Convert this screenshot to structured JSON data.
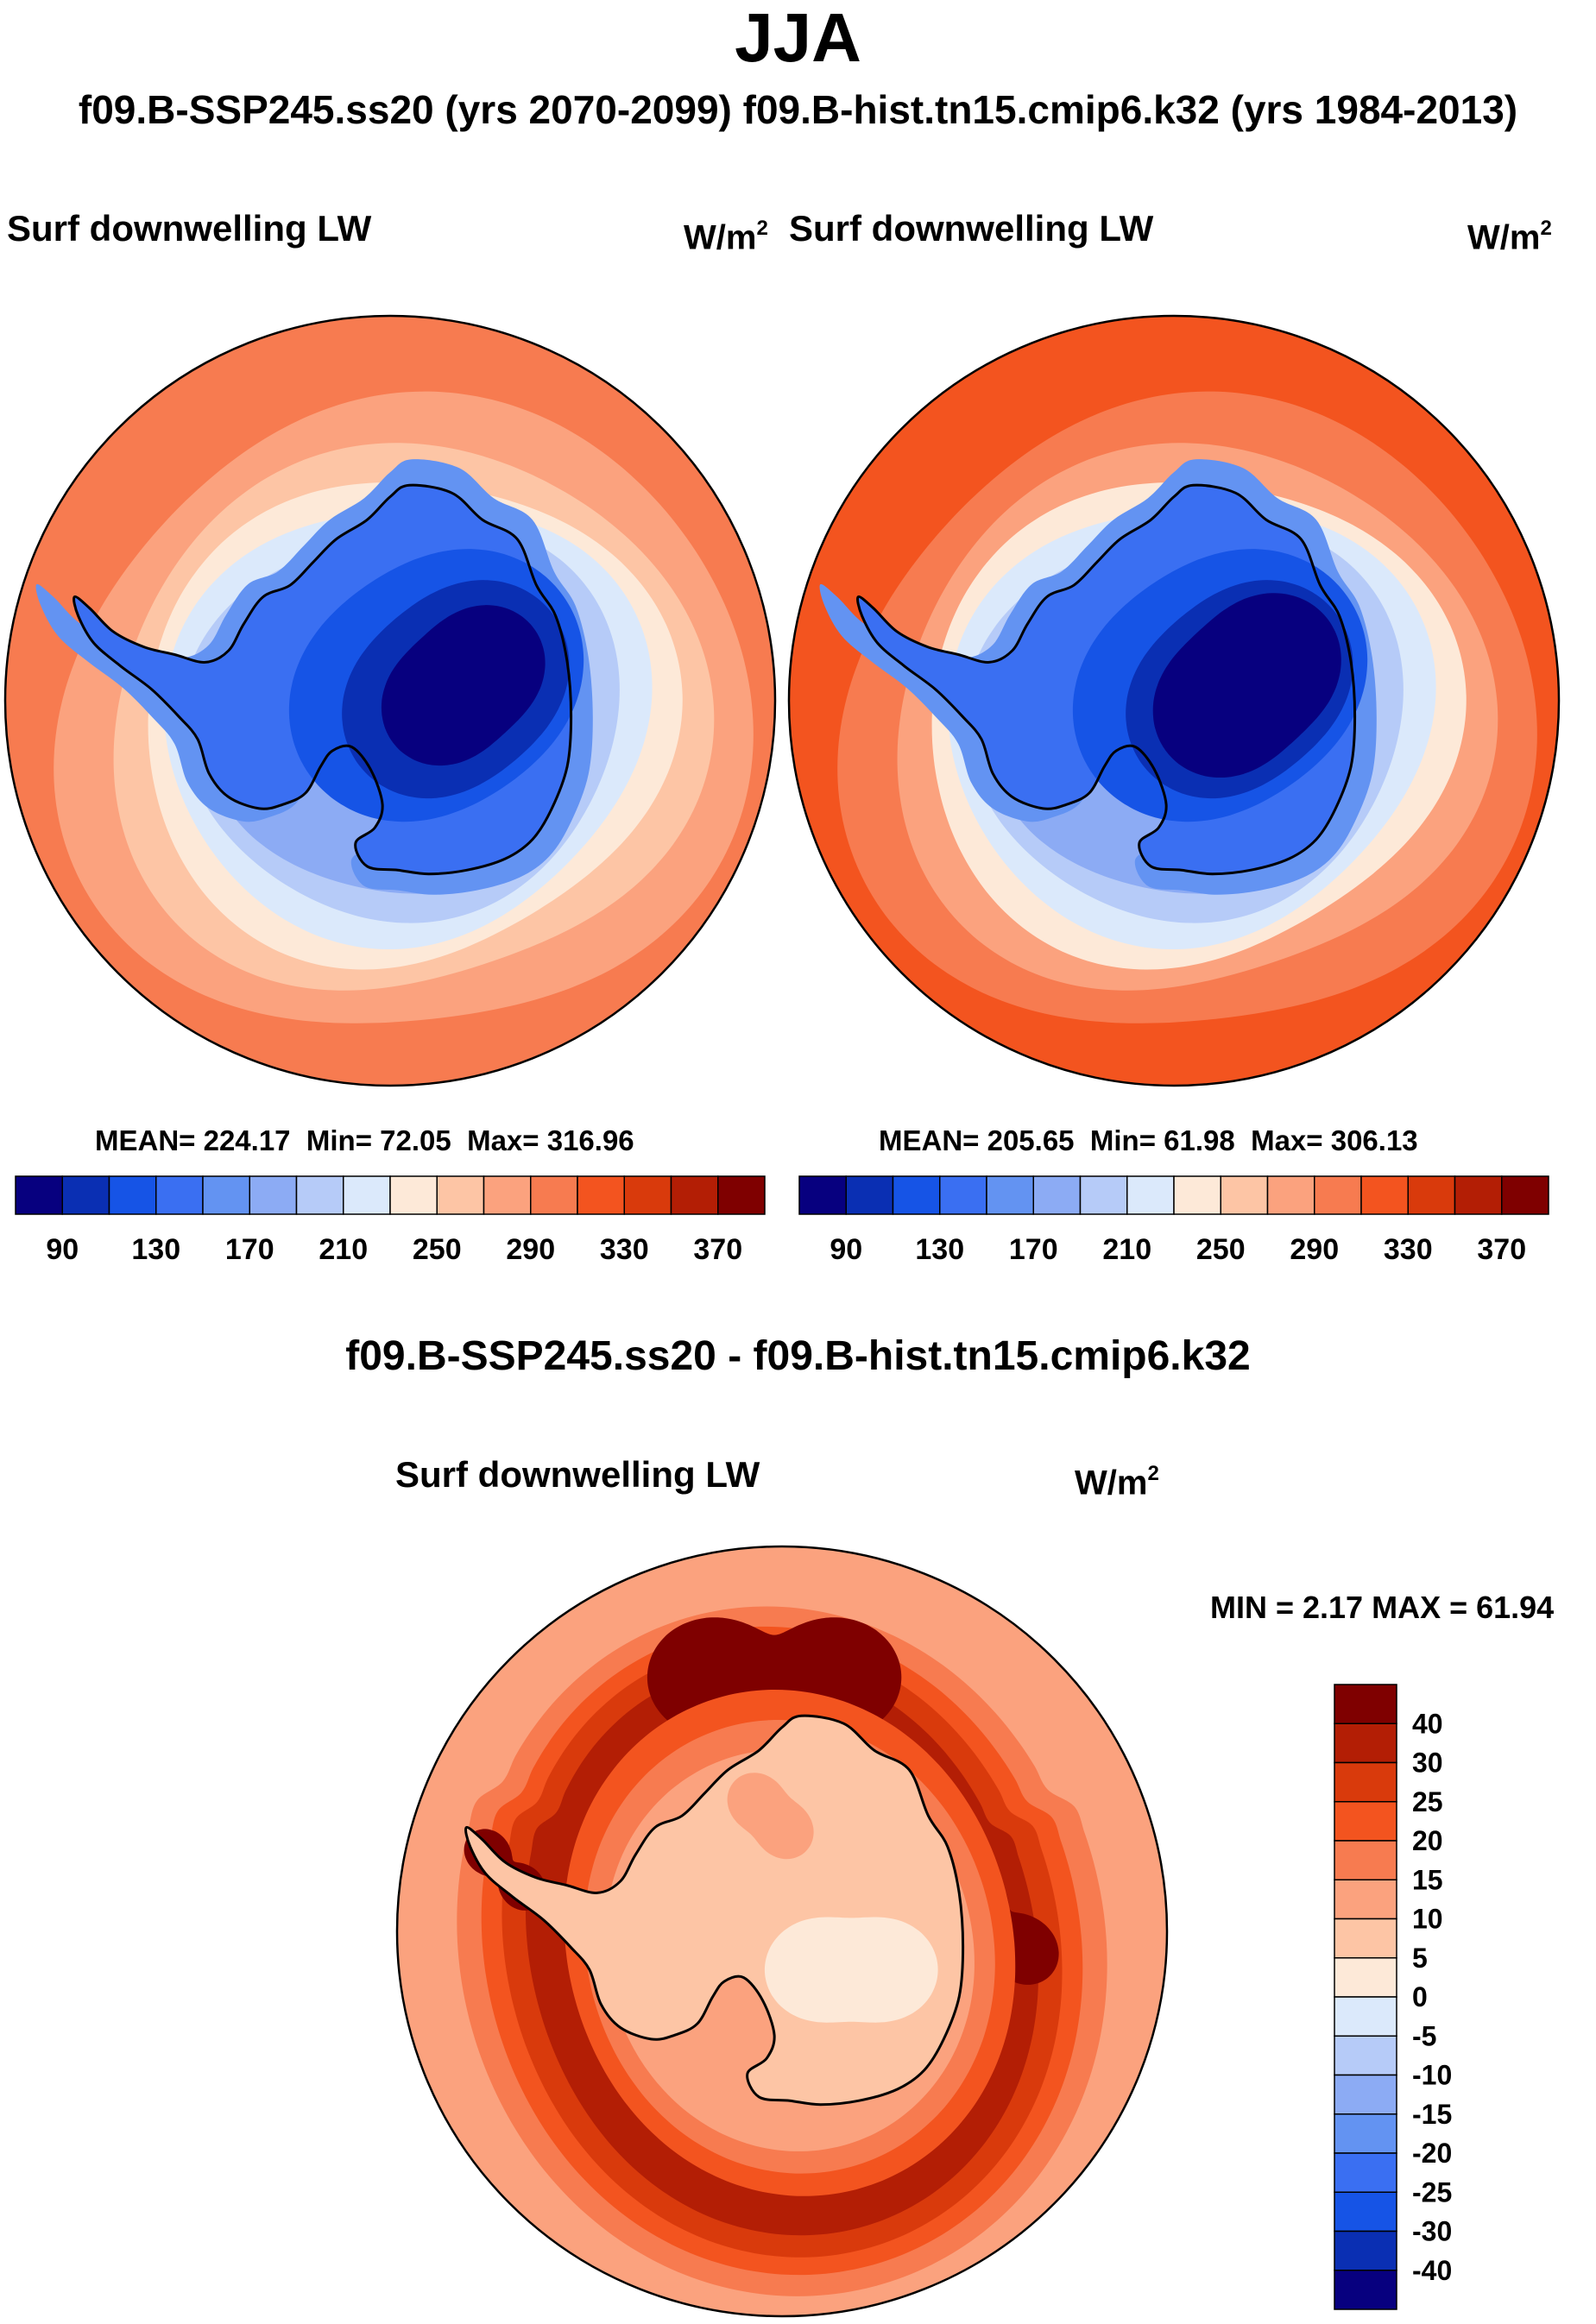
{
  "season": "JJA",
  "runs_title": "f09.B-SSP245.ss20 (yrs 2070-2099)  f09.B-hist.tn15.cmip6.k32 (yrs 1984-2013)",
  "diff_title": "f09.B-SSP245.ss20 - f09.B-hist.tn15.cmip6.k32",
  "chart_data": [
    {
      "type": "heatmap",
      "projection": "south-polar-stereographic",
      "variable": "Surf downwelling LW",
      "units": "W/m",
      "units_exp": "2",
      "case": "f09.B-SSP245.ss20 (yrs 2070-2099)",
      "mean_label": "MEAN= 224.17",
      "min_label": "Min=  72.05",
      "max_label": "Max= 316.96",
      "mean": 224.17,
      "min": 72.05,
      "max": 316.96,
      "colorbar_ticks": [
        "90",
        "130",
        "170",
        "210",
        "250",
        "290",
        "330",
        "370"
      ],
      "contour_levels": [
        90,
        110,
        130,
        150,
        170,
        190,
        210,
        230,
        250,
        270,
        290,
        310,
        330,
        350,
        370
      ]
    },
    {
      "type": "heatmap",
      "projection": "south-polar-stereographic",
      "variable": "Surf downwelling LW",
      "units": "W/m",
      "units_exp": "2",
      "case": "f09.B-hist.tn15.cmip6.k32 (yrs 1984-2013)",
      "mean_label": "MEAN= 205.65",
      "min_label": "Min=  61.98",
      "max_label": "Max= 306.13",
      "mean": 205.65,
      "min": 61.98,
      "max": 306.13,
      "colorbar_ticks": [
        "90",
        "130",
        "170",
        "210",
        "250",
        "290",
        "330",
        "370"
      ],
      "contour_levels": [
        90,
        110,
        130,
        150,
        170,
        190,
        210,
        230,
        250,
        270,
        290,
        310,
        330,
        350,
        370
      ]
    },
    {
      "type": "heatmap",
      "projection": "south-polar-stereographic",
      "variable": "Surf downwelling LW",
      "units": "W/m",
      "units_exp": "2",
      "case": "f09.B-SSP245.ss20 - f09.B-hist.tn15.cmip6.k32",
      "minmax_label": "MIN =   2.17 MAX =  61.94",
      "min": 2.17,
      "max": 61.94,
      "colorbar_ticks": [
        "40",
        "30",
        "25",
        "20",
        "15",
        "10",
        "5",
        "0",
        "-5",
        "-10",
        "-15",
        "-20",
        "-25",
        "-30",
        "-40"
      ]
    }
  ],
  "palette": {
    "abs": [
      "#07007f",
      "#0a2fb3",
      "#1654e6",
      "#3a6ff2",
      "#6393f2",
      "#8cabf4",
      "#b6cbf8",
      "#dbe9fb",
      "#fde9d8",
      "#fdc5a5",
      "#fba27e",
      "#f77b50",
      "#f3541f",
      "#d93a0c",
      "#b31e05",
      "#7f0000"
    ],
    "diff": [
      "#7f0000",
      "#b31e05",
      "#d93a0c",
      "#f3541f",
      "#f77b50",
      "#fba27e",
      "#fdc5a5",
      "#fde9d8",
      "#dbe9fb",
      "#b6cbf8",
      "#8cabf4",
      "#6393f2",
      "#3a6ff2",
      "#1654e6",
      "#0a2fb3",
      "#07007f"
    ]
  }
}
